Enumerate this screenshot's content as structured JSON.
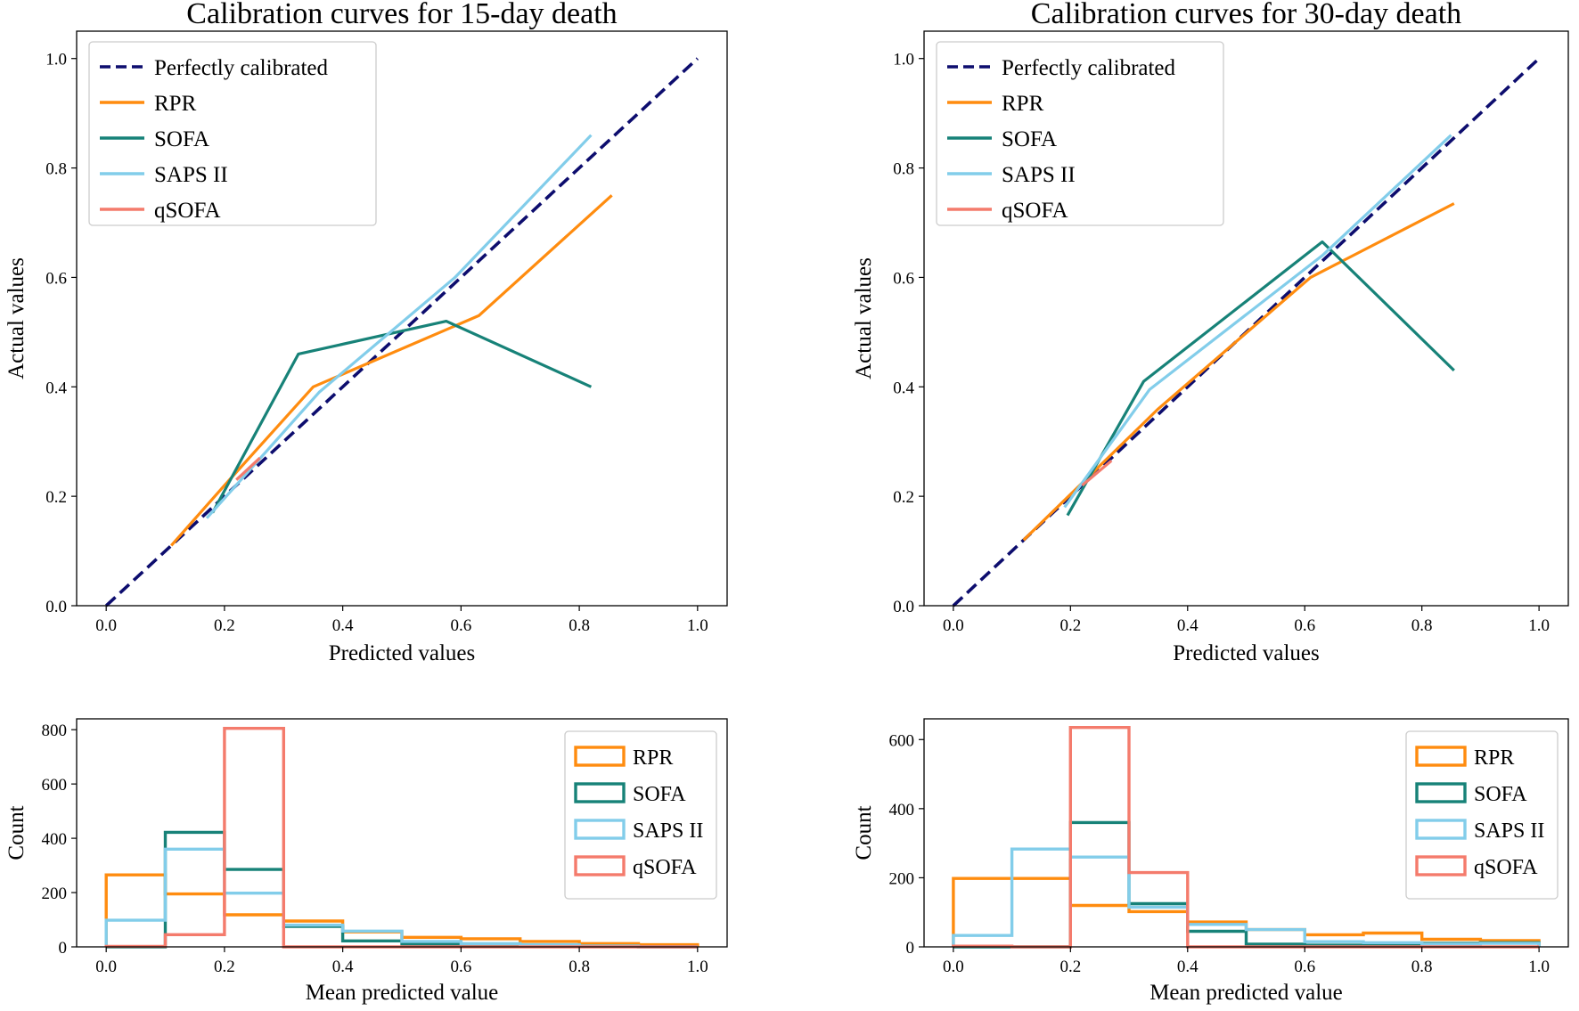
{
  "figure": {
    "caption": ""
  },
  "colors": {
    "ref": "#0d0d6e",
    "RPR": "#ff8c0f",
    "SOFA": "#178278",
    "SAPS II": "#82cdea",
    "qSOFA": "#f47b6c"
  },
  "chart_data": [
    {
      "type": "line",
      "title": "Calibration curves for 15-day death",
      "xlabel": "Predicted values",
      "ylabel": "Actual values",
      "xlim": [
        -0.05,
        1.05
      ],
      "ylim": [
        0,
        1.05
      ],
      "xticks": [
        0.0,
        0.2,
        0.4,
        0.6,
        0.8,
        1.0
      ],
      "yticks": [
        0.0,
        0.2,
        0.4,
        0.6,
        0.8,
        1.0
      ],
      "legend_position": "top-left",
      "series": [
        {
          "name": "Perfectly calibrated",
          "style": "dashed",
          "x": [
            0,
            1
          ],
          "y": [
            0,
            1
          ]
        },
        {
          "name": "RPR",
          "x": [
            0.11,
            0.2,
            0.35,
            0.63,
            0.855
          ],
          "y": [
            0.11,
            0.22,
            0.4,
            0.53,
            0.75
          ]
        },
        {
          "name": "SOFA",
          "x": [
            0.18,
            0.325,
            0.575,
            0.82
          ],
          "y": [
            0.17,
            0.46,
            0.52,
            0.4
          ]
        },
        {
          "name": "SAPS II",
          "x": [
            0.17,
            0.36,
            0.59,
            0.82
          ],
          "y": [
            0.16,
            0.39,
            0.6,
            0.86
          ]
        },
        {
          "name": "qSOFA",
          "x": [
            0.22,
            0.26
          ],
          "y": [
            0.23,
            0.27
          ]
        }
      ]
    },
    {
      "type": "line",
      "title": "Calibration curves for 30-day death",
      "xlabel": "Predicted values",
      "ylabel": "Actual values",
      "xlim": [
        -0.05,
        1.05
      ],
      "ylim": [
        0,
        1.05
      ],
      "xticks": [
        0.0,
        0.2,
        0.4,
        0.6,
        0.8,
        1.0
      ],
      "yticks": [
        0.0,
        0.2,
        0.4,
        0.6,
        0.8,
        1.0
      ],
      "legend_position": "top-left",
      "series": [
        {
          "name": "Perfectly calibrated",
          "style": "dashed",
          "x": [
            0,
            1
          ],
          "y": [
            0,
            1
          ]
        },
        {
          "name": "RPR",
          "x": [
            0.12,
            0.35,
            0.61,
            0.855
          ],
          "y": [
            0.12,
            0.36,
            0.6,
            0.735
          ]
        },
        {
          "name": "SOFA",
          "x": [
            0.195,
            0.325,
            0.63,
            0.855
          ],
          "y": [
            0.165,
            0.41,
            0.665,
            0.43
          ]
        },
        {
          "name": "SAPS II",
          "x": [
            0.19,
            0.335,
            0.63,
            0.85
          ],
          "y": [
            0.18,
            0.395,
            0.64,
            0.86
          ]
        },
        {
          "name": "qSOFA",
          "x": [
            0.22,
            0.27
          ],
          "y": [
            0.22,
            0.265
          ]
        }
      ]
    },
    {
      "type": "histogram",
      "title": "",
      "xlabel": "Mean predicted value",
      "ylabel": "Count",
      "xlim": [
        -0.05,
        1.05
      ],
      "ylim": [
        0,
        840
      ],
      "xticks": [
        0.0,
        0.2,
        0.4,
        0.6,
        0.8,
        1.0
      ],
      "yticks": [
        0,
        200,
        400,
        600,
        800
      ],
      "bins": [
        0,
        0.1,
        0.2,
        0.3,
        0.4,
        0.5,
        0.6,
        0.7,
        0.8,
        0.9,
        1.0
      ],
      "legend_position": "top-right",
      "series": [
        {
          "name": "RPR",
          "counts": [
            265,
            195,
            118,
            95,
            55,
            35,
            30,
            20,
            12,
            8
          ]
        },
        {
          "name": "SOFA",
          "counts": [
            0,
            422,
            285,
            75,
            22,
            10,
            8,
            5,
            3,
            0
          ]
        },
        {
          "name": "SAPS II",
          "counts": [
            98,
            360,
            198,
            80,
            58,
            20,
            12,
            8,
            3,
            0
          ]
        },
        {
          "name": "qSOFA",
          "counts": [
            2,
            45,
            805,
            0,
            0,
            0,
            0,
            0,
            0,
            0
          ]
        }
      ]
    },
    {
      "type": "histogram",
      "title": "",
      "xlabel": "Mean predicted value",
      "ylabel": "Count",
      "xlim": [
        -0.05,
        1.05
      ],
      "ylim": [
        0,
        660
      ],
      "xticks": [
        0.0,
        0.2,
        0.4,
        0.6,
        0.8,
        1.0
      ],
      "yticks": [
        0,
        200,
        400,
        600
      ],
      "bins": [
        0,
        0.1,
        0.2,
        0.3,
        0.4,
        0.5,
        0.6,
        0.7,
        0.8,
        0.9,
        1.0
      ],
      "legend_position": "top-right",
      "series": [
        {
          "name": "RPR",
          "counts": [
            198,
            198,
            120,
            102,
            72,
            50,
            35,
            40,
            22,
            18
          ]
        },
        {
          "name": "SOFA",
          "counts": [
            0,
            0,
            360,
            125,
            45,
            8,
            5,
            8,
            10,
            12
          ]
        },
        {
          "name": "SAPS II",
          "counts": [
            33,
            283,
            260,
            115,
            65,
            50,
            15,
            12,
            8,
            10
          ]
        },
        {
          "name": "qSOFA",
          "counts": [
            2,
            0,
            635,
            215,
            0,
            0,
            0,
            0,
            0,
            0
          ]
        }
      ]
    }
  ]
}
